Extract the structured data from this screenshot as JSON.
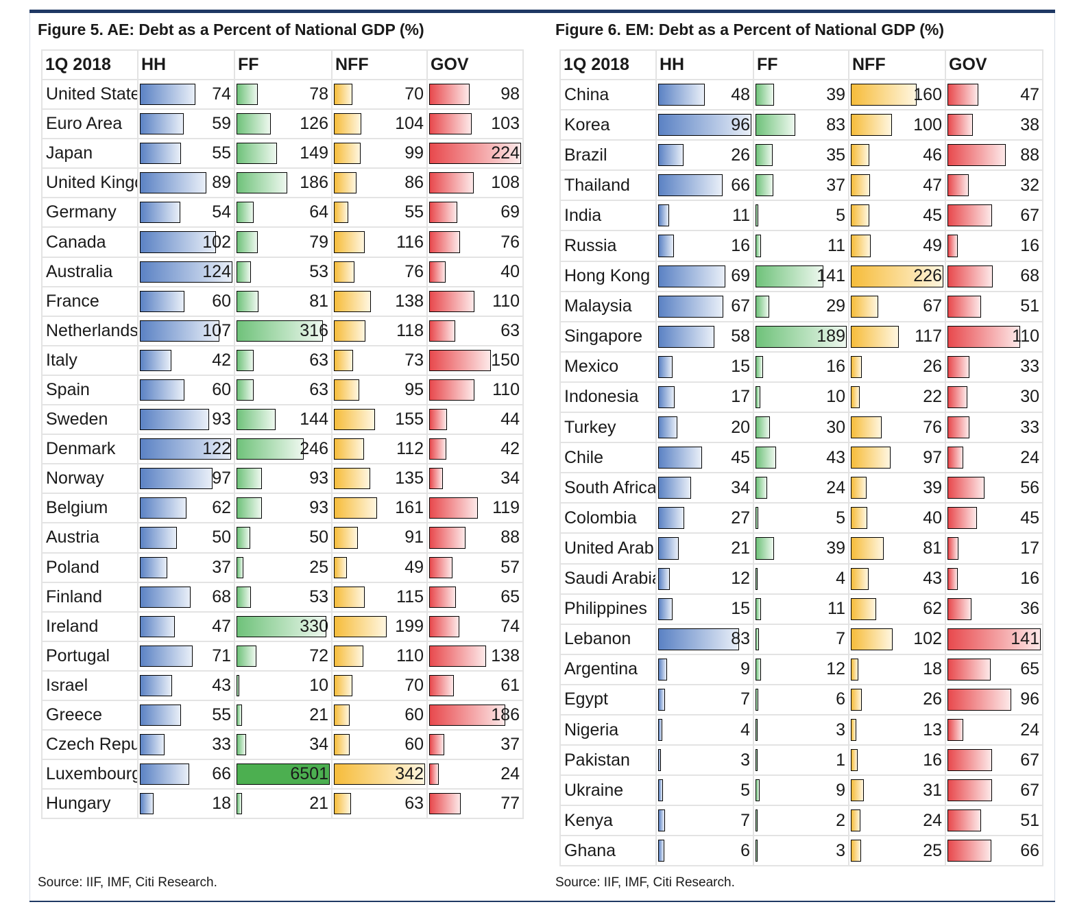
{
  "chart_data": [
    {
      "type": "table",
      "title": "Figure 5. AE: Debt as a Percent of National GDP (%)",
      "source": "Source: IIF, IMF, Citi Research.",
      "header": [
        "1Q 2018",
        "HH",
        "FF",
        "NFF",
        "GOV"
      ],
      "bar_caps": {
        "HH": 124,
        "FF": 342,
        "NFF": 342,
        "GOV": 224
      },
      "rows": [
        {
          "country": "United States",
          "HH": 74,
          "FF": 78,
          "NFF": 70,
          "GOV": 98
        },
        {
          "country": "Euro Area",
          "HH": 59,
          "FF": 126,
          "NFF": 104,
          "GOV": 103
        },
        {
          "country": "Japan",
          "HH": 55,
          "FF": 149,
          "NFF": 99,
          "GOV": 224
        },
        {
          "country": "United Kingdom",
          "HH": 89,
          "FF": 186,
          "NFF": 86,
          "GOV": 108
        },
        {
          "country": "Germany",
          "HH": 54,
          "FF": 64,
          "NFF": 55,
          "GOV": 69
        },
        {
          "country": "Canada",
          "HH": 102,
          "FF": 79,
          "NFF": 116,
          "GOV": 76
        },
        {
          "country": "Australia",
          "HH": 124,
          "FF": 53,
          "NFF": 76,
          "GOV": 40
        },
        {
          "country": "France",
          "HH": 60,
          "FF": 81,
          "NFF": 138,
          "GOV": 110
        },
        {
          "country": "Netherlands",
          "HH": 107,
          "FF": 316,
          "NFF": 118,
          "GOV": 63
        },
        {
          "country": "Italy",
          "HH": 42,
          "FF": 63,
          "NFF": 73,
          "GOV": 150
        },
        {
          "country": "Spain",
          "HH": 60,
          "FF": 63,
          "NFF": 95,
          "GOV": 110
        },
        {
          "country": "Sweden",
          "HH": 93,
          "FF": 144,
          "NFF": 155,
          "GOV": 44
        },
        {
          "country": "Denmark",
          "HH": 122,
          "FF": 246,
          "NFF": 112,
          "GOV": 42
        },
        {
          "country": "Norway",
          "HH": 97,
          "FF": 93,
          "NFF": 135,
          "GOV": 34
        },
        {
          "country": "Belgium",
          "HH": 62,
          "FF": 93,
          "NFF": 161,
          "GOV": 119
        },
        {
          "country": "Austria",
          "HH": 50,
          "FF": 50,
          "NFF": 91,
          "GOV": 88
        },
        {
          "country": "Poland",
          "HH": 37,
          "FF": 25,
          "NFF": 49,
          "GOV": 57
        },
        {
          "country": "Finland",
          "HH": 68,
          "FF": 53,
          "NFF": 115,
          "GOV": 65
        },
        {
          "country": "Ireland",
          "HH": 47,
          "FF": 330,
          "NFF": 199,
          "GOV": 74
        },
        {
          "country": "Portugal",
          "HH": 71,
          "FF": 72,
          "NFF": 110,
          "GOV": 138
        },
        {
          "country": "Israel",
          "HH": 43,
          "FF": 10,
          "NFF": 70,
          "GOV": 61
        },
        {
          "country": "Greece",
          "HH": 55,
          "FF": 21,
          "NFF": 60,
          "GOV": 186
        },
        {
          "country": "Czech Republic",
          "HH": 33,
          "FF": 34,
          "NFF": 60,
          "GOV": 37
        },
        {
          "country": "Luxembourg",
          "HH": 66,
          "FF": 6501,
          "NFF": 342,
          "GOV": 24
        },
        {
          "country": "Hungary",
          "HH": 18,
          "FF": 21,
          "NFF": 63,
          "GOV": 77
        }
      ]
    },
    {
      "type": "table",
      "title": "Figure 6. EM: Debt as a Percent of National GDP (%)",
      "source": "Source: IIF, IMF, Citi Research.",
      "header": [
        "1Q 2018",
        "HH",
        "FF",
        "NFF",
        "GOV"
      ],
      "bar_caps": {
        "HH": 96,
        "FF": 189,
        "NFF": 226,
        "GOV": 141
      },
      "rows": [
        {
          "country": "China",
          "HH": 48,
          "FF": 39,
          "NFF": 160,
          "GOV": 47
        },
        {
          "country": "Korea",
          "HH": 96,
          "FF": 83,
          "NFF": 100,
          "GOV": 38
        },
        {
          "country": "Brazil",
          "HH": 26,
          "FF": 35,
          "NFF": 46,
          "GOV": 88
        },
        {
          "country": "Thailand",
          "HH": 66,
          "FF": 37,
          "NFF": 47,
          "GOV": 32
        },
        {
          "country": "India",
          "HH": 11,
          "FF": 5,
          "NFF": 45,
          "GOV": 67
        },
        {
          "country": "Russia",
          "HH": 16,
          "FF": 11,
          "NFF": 49,
          "GOV": 16
        },
        {
          "country": "Hong Kong",
          "HH": 69,
          "FF": 141,
          "NFF": 226,
          "GOV": 68
        },
        {
          "country": "Malaysia",
          "HH": 67,
          "FF": 29,
          "NFF": 67,
          "GOV": 51
        },
        {
          "country": "Singapore",
          "HH": 58,
          "FF": 189,
          "NFF": 117,
          "GOV": 110
        },
        {
          "country": "Mexico",
          "HH": 15,
          "FF": 16,
          "NFF": 26,
          "GOV": 33
        },
        {
          "country": "Indonesia",
          "HH": 17,
          "FF": 10,
          "NFF": 22,
          "GOV": 30
        },
        {
          "country": "Turkey",
          "HH": 20,
          "FF": 30,
          "NFF": 76,
          "GOV": 33
        },
        {
          "country": "Chile",
          "HH": 45,
          "FF": 43,
          "NFF": 97,
          "GOV": 24
        },
        {
          "country": "South Africa",
          "HH": 34,
          "FF": 24,
          "NFF": 39,
          "GOV": 56
        },
        {
          "country": "Colombia",
          "HH": 27,
          "FF": 5,
          "NFF": 40,
          "GOV": 45
        },
        {
          "country": "United Arab Emirates",
          "HH": 21,
          "FF": 39,
          "NFF": 81,
          "GOV": 17
        },
        {
          "country": "Saudi Arabia",
          "HH": 12,
          "FF": 4,
          "NFF": 43,
          "GOV": 16
        },
        {
          "country": "Philippines",
          "HH": 15,
          "FF": 11,
          "NFF": 62,
          "GOV": 36
        },
        {
          "country": "Lebanon",
          "HH": 83,
          "FF": 7,
          "NFF": 102,
          "GOV": 141
        },
        {
          "country": "Argentina",
          "HH": 9,
          "FF": 12,
          "NFF": 18,
          "GOV": 65
        },
        {
          "country": "Egypt",
          "HH": 7,
          "FF": 6,
          "NFF": 26,
          "GOV": 96
        },
        {
          "country": "Nigeria",
          "HH": 4,
          "FF": 3,
          "NFF": 13,
          "GOV": 24
        },
        {
          "country": "Pakistan",
          "HH": 3,
          "FF": 1,
          "NFF": 16,
          "GOV": 67
        },
        {
          "country": "Ukraine",
          "HH": 5,
          "FF": 9,
          "NFF": 31,
          "GOV": 67
        },
        {
          "country": "Kenya",
          "HH": 7,
          "FF": 2,
          "NFF": 24,
          "GOV": 51
        },
        {
          "country": "Ghana",
          "HH": 6,
          "FF": 3,
          "NFF": 25,
          "GOV": 66
        }
      ]
    }
  ]
}
